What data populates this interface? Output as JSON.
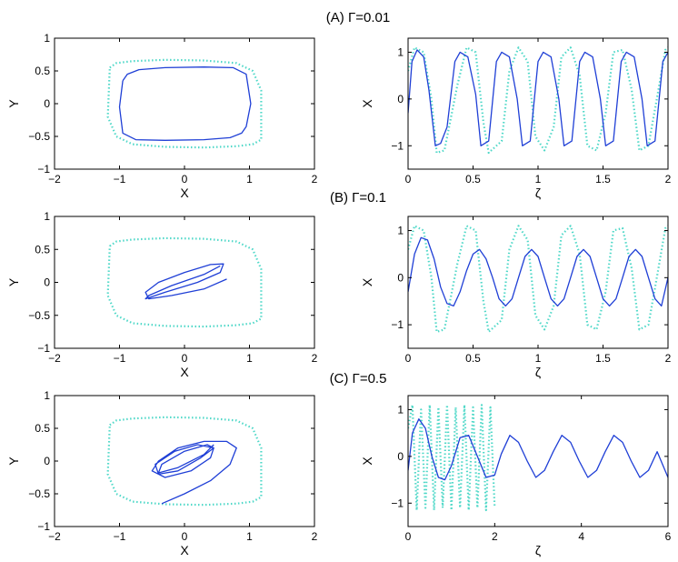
{
  "figure": {
    "colors": {
      "solid": "#1f3fd6",
      "dotted": "#4fd8c8",
      "axes": "#000000"
    }
  },
  "chart_data": [
    {
      "type": "line",
      "panel": "A",
      "title": "(A) Γ=0.01",
      "xlabel": "X",
      "ylabel": "Y",
      "xlim": [
        -2,
        2
      ],
      "ylim": [
        -1,
        1
      ],
      "xticks": [
        -2,
        -1,
        0,
        1,
        2
      ],
      "yticks": [
        -1,
        -0.5,
        0,
        0.5,
        1
      ],
      "series": [
        {
          "style": "dotted",
          "x": [
            -1.15,
            -1.05,
            -0.8,
            -0.3,
            0.3,
            0.8,
            1.05,
            1.18,
            1.18,
            1.05,
            0.8,
            0.3,
            -0.3,
            -0.8,
            -1.05,
            -1.18,
            -1.15
          ],
          "y": [
            0.55,
            0.62,
            0.65,
            0.67,
            0.66,
            0.62,
            0.5,
            0.2,
            -0.55,
            -0.62,
            -0.65,
            -0.67,
            -0.66,
            -0.62,
            -0.5,
            -0.2,
            0.55
          ]
        },
        {
          "style": "solid",
          "x": [
            -0.95,
            -0.88,
            -0.7,
            -0.3,
            0.3,
            0.75,
            0.95,
            1.02,
            0.95,
            0.88,
            0.7,
            0.3,
            -0.3,
            -0.75,
            -0.95,
            -1.0,
            -0.95
          ],
          "y": [
            0.35,
            0.45,
            0.52,
            0.55,
            0.56,
            0.55,
            0.45,
            0.0,
            -0.35,
            -0.45,
            -0.52,
            -0.55,
            -0.56,
            -0.55,
            -0.45,
            -0.05,
            0.35
          ]
        }
      ]
    },
    {
      "type": "line",
      "panel": "A",
      "xlabel": "ζ",
      "ylabel": "X",
      "xlim": [
        0,
        2
      ],
      "ylim": [
        -1.5,
        1.3
      ],
      "xticks": [
        0,
        0.5,
        1,
        1.5,
        2
      ],
      "yticks": [
        -1,
        0,
        1
      ],
      "series": [
        {
          "style": "dotted",
          "x": [
            0,
            0.05,
            0.12,
            0.18,
            0.22,
            0.28,
            0.38,
            0.45,
            0.52,
            0.58,
            0.62,
            0.72,
            0.78,
            0.85,
            0.92,
            0.98,
            1.05,
            1.12,
            1.18,
            1.25,
            1.32,
            1.38,
            1.45,
            1.52,
            1.58,
            1.65,
            1.72,
            1.78,
            1.85,
            1.92,
            1.98,
            2.0
          ],
          "y": [
            0.6,
            1.1,
            1.0,
            0.0,
            -1.15,
            -1.1,
            0.3,
            1.1,
            1.0,
            -0.5,
            -1.15,
            -0.9,
            0.6,
            1.1,
            0.8,
            -0.8,
            -1.1,
            -0.6,
            0.9,
            1.1,
            0.5,
            -1.0,
            -1.1,
            -0.3,
            1.0,
            1.05,
            0.2,
            -1.1,
            -1.0,
            0.1,
            1.05,
            1.1
          ]
        },
        {
          "style": "solid",
          "x": [
            0,
            0.03,
            0.07,
            0.12,
            0.16,
            0.21,
            0.25,
            0.3,
            0.36,
            0.4,
            0.46,
            0.52,
            0.56,
            0.62,
            0.68,
            0.72,
            0.78,
            0.84,
            0.88,
            0.94,
            1.0,
            1.04,
            1.1,
            1.16,
            1.2,
            1.26,
            1.32,
            1.36,
            1.42,
            1.48,
            1.52,
            1.58,
            1.64,
            1.68,
            1.74,
            1.8,
            1.84,
            1.9,
            1.96,
            2.0
          ],
          "y": [
            -0.3,
            0.8,
            1.05,
            0.9,
            0.2,
            -1.0,
            -0.95,
            -0.6,
            0.8,
            1.0,
            0.9,
            0.1,
            -1.0,
            -0.9,
            0.8,
            1.0,
            0.9,
            0.0,
            -1.0,
            -0.9,
            0.8,
            1.0,
            0.9,
            0.0,
            -1.0,
            -0.9,
            0.8,
            1.0,
            0.9,
            0.0,
            -1.0,
            -0.9,
            0.8,
            1.0,
            0.9,
            0.0,
            -1.0,
            -0.9,
            0.8,
            1.0
          ]
        }
      ]
    },
    {
      "type": "line",
      "panel": "B",
      "title": "(B) Γ=0.1",
      "xlabel": "X",
      "ylabel": "Y",
      "xlim": [
        -2,
        2
      ],
      "ylim": [
        -1,
        1
      ],
      "xticks": [
        -2,
        -1,
        0,
        1,
        2
      ],
      "yticks": [
        -1,
        -0.5,
        0,
        0.5,
        1
      ],
      "series": [
        {
          "style": "dotted",
          "x": [
            -1.15,
            -1.05,
            -0.8,
            -0.3,
            0.3,
            0.8,
            1.05,
            1.18,
            1.18,
            1.05,
            0.8,
            0.3,
            -0.3,
            -0.8,
            -1.05,
            -1.18,
            -1.15
          ],
          "y": [
            0.55,
            0.62,
            0.65,
            0.67,
            0.66,
            0.62,
            0.5,
            0.2,
            -0.55,
            -0.62,
            -0.65,
            -0.67,
            -0.66,
            -0.62,
            -0.5,
            -0.2,
            0.55
          ]
        },
        {
          "style": "solid",
          "x": [
            0.65,
            0.3,
            -0.2,
            -0.55,
            -0.6,
            -0.4,
            0.0,
            0.4,
            0.6,
            0.55,
            0.2,
            -0.3,
            -0.6,
            -0.55,
            -0.2,
            0.3,
            0.55
          ],
          "y": [
            0.05,
            -0.1,
            -0.2,
            -0.25,
            -0.15,
            0.0,
            0.15,
            0.27,
            0.28,
            0.15,
            0.0,
            -0.15,
            -0.25,
            -0.2,
            -0.05,
            0.12,
            0.25
          ]
        }
      ]
    },
    {
      "type": "line",
      "panel": "B",
      "xlabel": "ζ",
      "ylabel": "X",
      "xlim": [
        0,
        2
      ],
      "ylim": [
        -1.5,
        1.3
      ],
      "xticks": [
        0,
        0.5,
        1,
        1.5,
        2
      ],
      "yticks": [
        -1,
        0,
        1
      ],
      "series": [
        {
          "style": "dotted",
          "x": [
            0,
            0.05,
            0.12,
            0.18,
            0.22,
            0.28,
            0.38,
            0.45,
            0.52,
            0.58,
            0.62,
            0.72,
            0.78,
            0.85,
            0.92,
            0.98,
            1.05,
            1.12,
            1.18,
            1.25,
            1.32,
            1.38,
            1.45,
            1.52,
            1.58,
            1.65,
            1.72,
            1.78,
            1.85,
            1.92,
            1.98,
            2.0
          ],
          "y": [
            0.6,
            1.1,
            1.0,
            0.0,
            -1.15,
            -1.1,
            0.3,
            1.1,
            1.0,
            -0.5,
            -1.15,
            -0.9,
            0.6,
            1.1,
            0.8,
            -0.8,
            -1.1,
            -0.6,
            0.9,
            1.1,
            0.5,
            -1.0,
            -1.1,
            -0.3,
            1.0,
            1.05,
            0.2,
            -1.1,
            -1.0,
            0.1,
            1.05,
            1.1
          ]
        },
        {
          "style": "solid",
          "x": [
            0,
            0.05,
            0.1,
            0.15,
            0.2,
            0.25,
            0.3,
            0.35,
            0.4,
            0.45,
            0.5,
            0.55,
            0.6,
            0.65,
            0.7,
            0.75,
            0.8,
            0.85,
            0.9,
            0.95,
            1.0,
            1.05,
            1.1,
            1.15,
            1.2,
            1.25,
            1.3,
            1.35,
            1.4,
            1.45,
            1.5,
            1.55,
            1.6,
            1.65,
            1.7,
            1.75,
            1.8,
            1.85,
            1.9,
            1.95,
            2.0
          ],
          "y": [
            -0.3,
            0.5,
            0.85,
            0.8,
            0.4,
            -0.2,
            -0.55,
            -0.6,
            -0.3,
            0.15,
            0.5,
            0.6,
            0.4,
            0.0,
            -0.45,
            -0.6,
            -0.45,
            0.0,
            0.45,
            0.6,
            0.45,
            0.0,
            -0.45,
            -0.6,
            -0.45,
            0.0,
            0.45,
            0.6,
            0.45,
            0.0,
            -0.45,
            -0.6,
            -0.45,
            0.0,
            0.45,
            0.6,
            0.45,
            0.0,
            -0.45,
            -0.6,
            0.0
          ]
        }
      ]
    },
    {
      "type": "line",
      "panel": "C",
      "title": "(C) Γ=0.5",
      "xlabel": "X",
      "ylabel": "Y",
      "xlim": [
        -2,
        2
      ],
      "ylim": [
        -1,
        1
      ],
      "xticks": [
        -2,
        -1,
        0,
        1,
        2
      ],
      "yticks": [
        -1,
        -0.5,
        0,
        0.5,
        1
      ],
      "series": [
        {
          "style": "dotted",
          "x": [
            -1.15,
            -1.05,
            -0.8,
            -0.3,
            0.3,
            0.8,
            1.05,
            1.18,
            1.18,
            1.05,
            0.8,
            0.3,
            -0.3,
            -0.8,
            -1.05,
            -1.18,
            -1.15
          ],
          "y": [
            0.55,
            0.62,
            0.65,
            0.67,
            0.66,
            0.62,
            0.5,
            0.2,
            -0.55,
            -0.62,
            -0.65,
            -0.67,
            -0.66,
            -0.62,
            -0.5,
            -0.2,
            0.55
          ]
        },
        {
          "style": "solid",
          "x": [
            -0.35,
            0.0,
            0.4,
            0.7,
            0.8,
            0.65,
            0.3,
            -0.1,
            -0.4,
            -0.5,
            -0.3,
            0.1,
            0.4,
            0.45,
            0.2,
            -0.15,
            -0.45,
            -0.4,
            -0.1,
            0.25,
            0.45,
            0.35,
            0.0,
            -0.35,
            -0.4,
            -0.1,
            0.3,
            0.45
          ],
          "y": [
            -0.65,
            -0.5,
            -0.3,
            -0.05,
            0.2,
            0.3,
            0.3,
            0.2,
            0.0,
            -0.15,
            -0.25,
            -0.15,
            0.05,
            0.2,
            0.25,
            0.15,
            -0.05,
            -0.2,
            -0.15,
            0.05,
            0.2,
            0.25,
            0.15,
            -0.05,
            -0.18,
            -0.1,
            0.1,
            0.25
          ]
        }
      ]
    },
    {
      "type": "line",
      "panel": "C",
      "xlabel": "ζ",
      "ylabel": "X",
      "xlim": [
        0,
        6
      ],
      "ylim": [
        -1.5,
        1.3
      ],
      "xticks": [
        0,
        2,
        4,
        6
      ],
      "yticks": [
        -1,
        0,
        1
      ],
      "series": [
        {
          "style": "dotted",
          "x": [
            0.0,
            0.1,
            0.2,
            0.3,
            0.4,
            0.5,
            0.6,
            0.7,
            0.8,
            0.9,
            1.0,
            1.1,
            1.2,
            1.3,
            1.4,
            1.5,
            1.6,
            1.7,
            1.8,
            1.9,
            2.0
          ],
          "y": [
            0.6,
            1.1,
            -1.15,
            1.0,
            -1.1,
            1.1,
            -1.15,
            1.05,
            -1.1,
            1.1,
            -1.15,
            1.05,
            -1.1,
            1.1,
            -1.15,
            1.05,
            -1.1,
            1.1,
            -1.15,
            1.05,
            -1.1
          ]
        },
        {
          "style": "solid",
          "x": [
            0,
            0.1,
            0.25,
            0.4,
            0.55,
            0.7,
            0.85,
            1.0,
            1.2,
            1.4,
            1.6,
            1.8,
            2.0,
            2.15,
            2.35,
            2.55,
            2.75,
            2.95,
            3.15,
            3.35,
            3.55,
            3.75,
            3.95,
            4.15,
            4.35,
            4.55,
            4.75,
            4.95,
            5.15,
            5.35,
            5.55,
            5.75,
            6.0
          ],
          "y": [
            -0.3,
            0.5,
            0.8,
            0.6,
            0.0,
            -0.45,
            -0.5,
            -0.2,
            0.4,
            0.45,
            0.0,
            -0.45,
            -0.4,
            0.05,
            0.45,
            0.3,
            -0.1,
            -0.45,
            -0.3,
            0.1,
            0.45,
            0.3,
            -0.1,
            -0.45,
            -0.3,
            0.1,
            0.45,
            0.3,
            -0.1,
            -0.45,
            -0.3,
            0.1,
            -0.45
          ]
        }
      ]
    }
  ]
}
